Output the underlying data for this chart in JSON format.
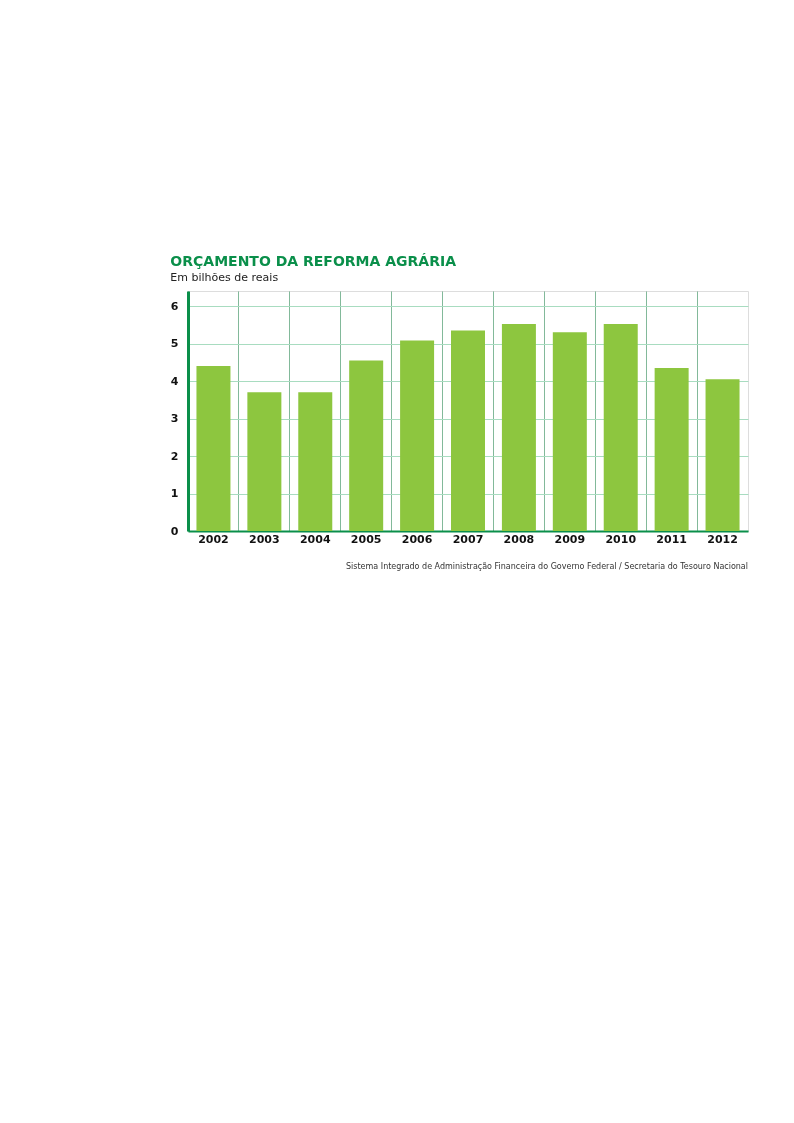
{
  "chart_data": {
    "type": "bar",
    "title": "ORÇAMENTO DA REFORMA AGRÁRIA",
    "subtitle": "Em bilhões de reais",
    "categories": [
      "2002",
      "2003",
      "2004",
      "2005",
      "2006",
      "2007",
      "2008",
      "2009",
      "2010",
      "2011",
      "2012"
    ],
    "values": [
      4.4,
      3.7,
      3.7,
      4.55,
      5.08,
      5.35,
      5.52,
      5.3,
      5.52,
      4.35,
      4.05
    ],
    "color": "#8dc63f",
    "ylim": [
      0,
      6.4
    ],
    "yticks": [
      0,
      1,
      2,
      3,
      4,
      5,
      6
    ],
    "grid": true,
    "annotations": [
      "Sistema Integrado de Administração Financeira do Governo Federal / Secretaria do Tesouro Nacional"
    ]
  }
}
